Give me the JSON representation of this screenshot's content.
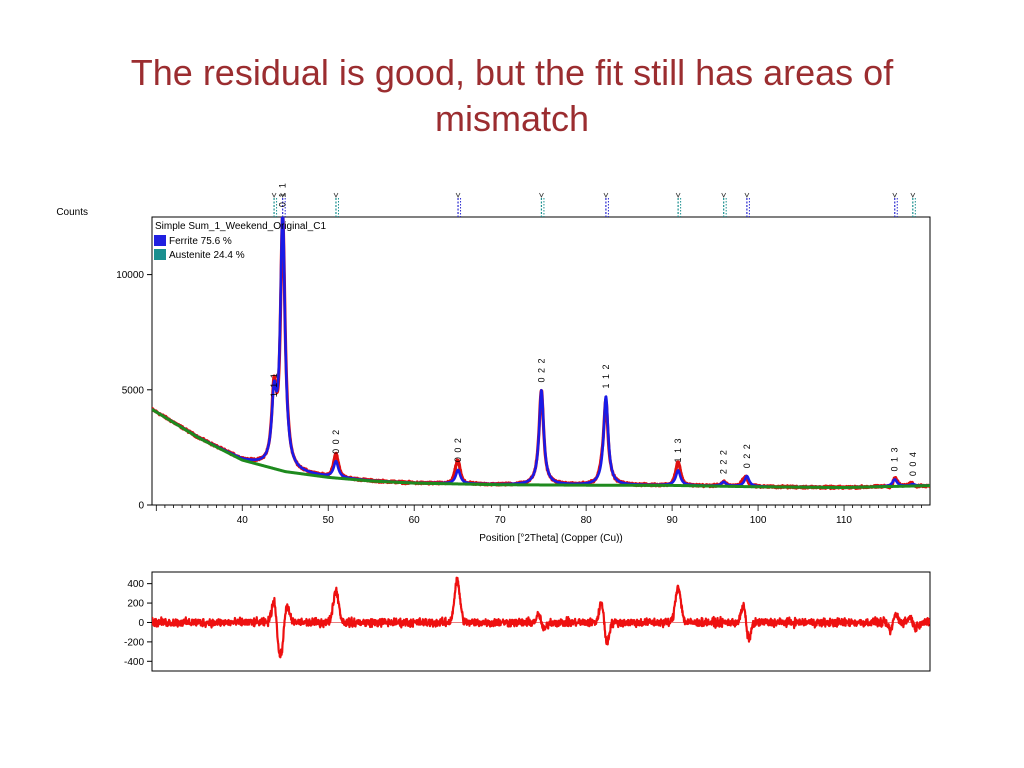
{
  "title": "The residual is good, but the fit still has areas of mismatch",
  "chart_data": [
    {
      "type": "line",
      "ylabel": "Counts",
      "xlabel": "Position [°2Theta] (Copper (Cu))",
      "xlim": [
        29.5,
        120
      ],
      "ylim": [
        0,
        12500
      ],
      "x_ticks": [
        40,
        50,
        60,
        70,
        80,
        90,
        100,
        110
      ],
      "y_ticks": [
        0,
        5000,
        10000
      ],
      "legend": {
        "title": "Simple Sum_1_Weekend_Original_C1",
        "placement": "top-left",
        "entries": [
          {
            "label": "Ferrite 75.6 %",
            "color": "#1f1fe0"
          },
          {
            "label": "Austenite 24.4 %",
            "color": "#1a8f8f"
          }
        ]
      },
      "series_colors": {
        "observed": "#e01010",
        "calculated": "#1a1ae6",
        "background": "#1e8a1e"
      },
      "background_points": [
        [
          29.5,
          4150
        ],
        [
          35,
          2900
        ],
        [
          40,
          1950
        ],
        [
          45,
          1450
        ],
        [
          50,
          1200
        ],
        [
          55,
          1040
        ],
        [
          60,
          950
        ],
        [
          70,
          880
        ],
        [
          80,
          860
        ],
        [
          90,
          850
        ],
        [
          100,
          790
        ],
        [
          110,
          760
        ],
        [
          120,
          840
        ]
      ],
      "peaks": [
        {
          "x": 43.7,
          "height": 2750,
          "hkl": "1 1 1",
          "phase": "austenite"
        },
        {
          "x": 44.7,
          "height": 11100,
          "hkl": "0 1 1",
          "phase": "ferrite"
        },
        {
          "x": 50.9,
          "height": 700,
          "hkl": "0 0 2",
          "phase": "austenite"
        },
        {
          "x": 65.1,
          "height": 600,
          "hkl": "0 0 2",
          "phase": "ferrite"
        },
        {
          "x": 74.8,
          "height": 4100,
          "hkl": "0 2 2",
          "phase": "austenite"
        },
        {
          "x": 82.3,
          "height": 3850,
          "hkl": "1 1 2",
          "phase": "ferrite"
        },
        {
          "x": 90.7,
          "height": 650,
          "hkl": "1 1 3",
          "phase": "austenite"
        },
        {
          "x": 96.0,
          "height": 180,
          "hkl": "2 2 2",
          "phase": "austenite"
        },
        {
          "x": 98.7,
          "height": 450,
          "hkl": "0 2 2",
          "phase": "ferrite"
        },
        {
          "x": 115.9,
          "height": 300,
          "hkl": "0 1 3",
          "phase": "ferrite"
        },
        {
          "x": 118.0,
          "height": 80,
          "hkl": "0 0 4",
          "phase": "austenite"
        }
      ],
      "reference_markers": [
        {
          "x": 43.7,
          "phase": "austenite"
        },
        {
          "x": 44.7,
          "phase": "ferrite"
        },
        {
          "x": 50.9,
          "phase": "austenite"
        },
        {
          "x": 65.1,
          "phase": "ferrite"
        },
        {
          "x": 74.8,
          "phase": "austenite"
        },
        {
          "x": 82.3,
          "phase": "ferrite"
        },
        {
          "x": 90.7,
          "phase": "austenite"
        },
        {
          "x": 96.0,
          "phase": "austenite"
        },
        {
          "x": 98.7,
          "phase": "ferrite"
        },
        {
          "x": 115.9,
          "phase": "ferrite"
        },
        {
          "x": 118.0,
          "phase": "austenite"
        }
      ]
    },
    {
      "type": "line",
      "ylabel": "",
      "xlabel": "",
      "xlim": [
        29.5,
        120
      ],
      "ylim": [
        -500,
        520
      ],
      "y_ticks": [
        400,
        200,
        0,
        -200,
        -400
      ],
      "zero_line_color": "#e88080",
      "series_color": "#ee1010",
      "residual_features": [
        {
          "x": 44.0,
          "shape": "derivative",
          "amp": -330
        },
        {
          "x": 44.9,
          "shape": "derivative",
          "amp": 250
        },
        {
          "x": 50.9,
          "shape": "peak",
          "amp": 330
        },
        {
          "x": 65.0,
          "shape": "peak",
          "amp": 430
        },
        {
          "x": 74.8,
          "shape": "derivative",
          "amp": -110
        },
        {
          "x": 82.1,
          "shape": "derivative",
          "amp": -300
        },
        {
          "x": 90.7,
          "shape": "peak",
          "amp": 370
        },
        {
          "x": 98.6,
          "shape": "derivative",
          "amp": -240
        },
        {
          "x": 115.7,
          "shape": "derivative",
          "amp": 120
        },
        {
          "x": 118.0,
          "shape": "derivative",
          "amp": -80
        }
      ]
    }
  ]
}
